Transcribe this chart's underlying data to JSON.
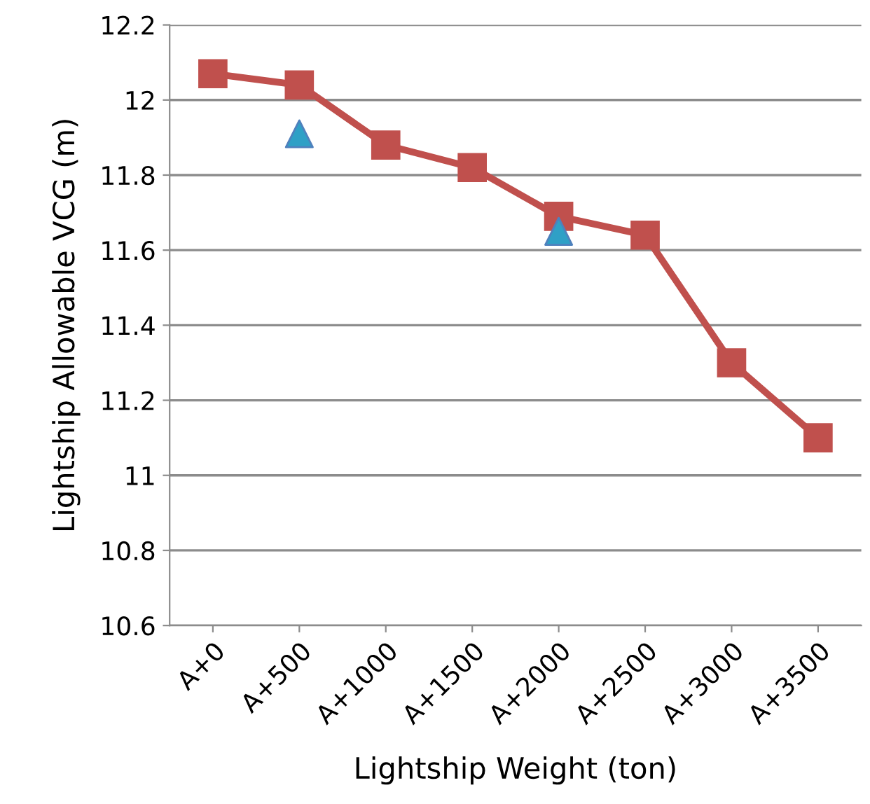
{
  "chart_data": {
    "type": "line",
    "xlabel": "Lightship Weight (ton)",
    "ylabel": "Lightship Allowable VCG (m)",
    "categories": [
      "A+0",
      "A+500",
      "A+1000",
      "A+1500",
      "A+2000",
      "A+2500",
      "A+3000",
      "A+3500"
    ],
    "series": [
      {
        "color": "#c0504d",
        "marker": "square",
        "line_style": "solid",
        "values": [
          12.07,
          12.04,
          11.88,
          11.82,
          11.69,
          11.64,
          11.3,
          11.1
        ]
      },
      {
        "type": "scatter",
        "color": "#2fa0c6",
        "marker": "triangle",
        "values": [
          null,
          11.91,
          null,
          null,
          11.65,
          null,
          null,
          null
        ]
      }
    ],
    "ylim": [
      10.6,
      12.2
    ],
    "yticks": [
      {
        "value": 10.6,
        "label": "10.6"
      },
      {
        "value": 10.8,
        "label": "10.8"
      },
      {
        "value": 11,
        "label": "11"
      },
      {
        "value": 11.2,
        "label": "11.2"
      },
      {
        "value": 11.4,
        "label": "11.4"
      },
      {
        "value": 11.6,
        "label": "11.6"
      },
      {
        "value": 11.8,
        "label": "11.8"
      },
      {
        "value": 12,
        "label": "12"
      },
      {
        "value": 12.2,
        "label": "12.2"
      }
    ],
    "grid": "y",
    "legend": false
  }
}
